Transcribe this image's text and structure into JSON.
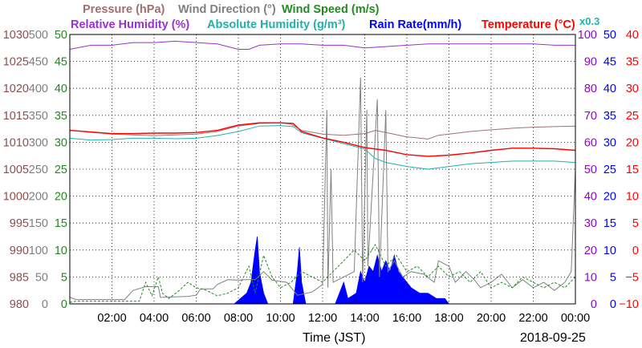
{
  "header": {
    "pressure": "Pressure (hPa)",
    "wind_direction": "Wind Direction (°)",
    "wind_speed": "Wind Speed (m/s)",
    "relative_humidity": "Relative Humidity (%)",
    "absolute_humidity": "Absolute Humidity (g/m³)",
    "rain_rate": "Rain Rate(mm/h)",
    "temperature": "Temperature (°C)",
    "scale_note": "x0.3"
  },
  "footer": {
    "xlabel": "Time (JST)",
    "date": "2018-09-25"
  },
  "chart_data": {
    "type": "line",
    "x_domain_hours": [
      0,
      24
    ],
    "x_ticks": [
      "02:00",
      "04:00",
      "06:00",
      "08:00",
      "10:00",
      "12:00",
      "14:00",
      "16:00",
      "18:00",
      "20:00",
      "22:00",
      "00:00"
    ],
    "grid": true,
    "axes": {
      "pressure": {
        "range": [
          980,
          1030
        ],
        "ticks": [
          "980",
          "985",
          "990",
          "995",
          "1000",
          "1005",
          "1010",
          "1015",
          "1020",
          "1025",
          "1030"
        ],
        "color": "#8b4f4f"
      },
      "wind_direction": {
        "range": [
          0,
          500
        ],
        "ticks": [
          "0",
          "50",
          "100",
          "150",
          "200",
          "250",
          "300",
          "350",
          "400",
          "450",
          "500"
        ],
        "color": "#7f7f7f"
      },
      "wind_speed": {
        "range": [
          0,
          50
        ],
        "ticks": [
          "0",
          "5",
          "10",
          "15",
          "20",
          "25",
          "30",
          "35",
          "40",
          "45",
          "50"
        ],
        "color": "#1e8a1e"
      },
      "relative_humidity": {
        "range": [
          0,
          100
        ],
        "ticks": [
          "0",
          "10",
          "20",
          "30",
          "40",
          "50",
          "60",
          "70",
          "80",
          "90",
          "100"
        ],
        "color": "#9400d3"
      },
      "rain_rate": {
        "range": [
          0,
          50
        ],
        "ticks": [
          "0",
          "5",
          "10",
          "15",
          "20",
          "25",
          "30",
          "35",
          "40",
          "45",
          "50"
        ],
        "color": "#0000ff"
      },
      "temperature": {
        "range": [
          -10,
          40
        ],
        "ticks": [
          "−10",
          "−5",
          "0",
          "5",
          "10",
          "15",
          "20",
          "25",
          "30",
          "35",
          "40"
        ],
        "color": "#ff0000"
      }
    },
    "series": [
      {
        "name": "Pressure (hPa)",
        "color": "#a07070",
        "axis": "pressure",
        "points": [
          [
            0,
            1012.2
          ],
          [
            2,
            1011.5
          ],
          [
            4,
            1011.2
          ],
          [
            6,
            1011.5
          ],
          [
            7,
            1012
          ],
          [
            8,
            1013
          ],
          [
            9,
            1013.5
          ],
          [
            10,
            1013.6
          ],
          [
            10.5,
            1013.4
          ],
          [
            11,
            1012.2
          ],
          [
            12,
            1011.5
          ],
          [
            13,
            1011.3
          ],
          [
            14,
            1011.6
          ],
          [
            14.5,
            1012.2
          ],
          [
            15,
            1011.8
          ],
          [
            16,
            1011
          ],
          [
            17,
            1010.6
          ],
          [
            17.5,
            1011.3
          ],
          [
            18,
            1011.5
          ],
          [
            19,
            1012
          ],
          [
            20,
            1012.3
          ],
          [
            21,
            1012.6
          ],
          [
            22,
            1012.8
          ],
          [
            23,
            1012.9
          ],
          [
            24,
            1013
          ]
        ]
      },
      {
        "name": "Relative Humidity (%)",
        "color": "#9932cc",
        "axis": "relative_humidity",
        "points": [
          [
            0,
            94.5
          ],
          [
            1,
            96
          ],
          [
            2,
            96
          ],
          [
            3,
            97
          ],
          [
            4,
            97
          ],
          [
            5,
            97.5
          ],
          [
            6,
            97
          ],
          [
            7,
            96.5
          ],
          [
            8,
            94.5
          ],
          [
            8.5,
            94.5
          ],
          [
            9,
            96
          ],
          [
            10,
            96.5
          ],
          [
            11,
            96.5
          ],
          [
            12,
            96
          ],
          [
            13,
            96
          ],
          [
            14,
            95
          ],
          [
            15,
            95.5
          ],
          [
            16,
            96
          ],
          [
            17,
            96.5
          ],
          [
            18,
            96.5
          ],
          [
            20,
            96.5
          ],
          [
            22,
            96.5
          ],
          [
            23,
            96
          ],
          [
            24,
            96
          ]
        ]
      },
      {
        "name": "Absolute Humidity (g/m³)",
        "color": "#20b2aa",
        "axis": "scaled_x0.3",
        "points": [
          [
            0,
            61.5
          ],
          [
            1,
            60.8
          ],
          [
            2,
            61
          ],
          [
            3,
            61.5
          ],
          [
            4,
            61.5
          ],
          [
            5,
            61.3
          ],
          [
            6,
            61.5
          ],
          [
            7,
            62.5
          ],
          [
            8,
            64
          ],
          [
            9,
            66
          ],
          [
            10,
            66.2
          ],
          [
            10.6,
            65.8
          ],
          [
            11,
            63.5
          ],
          [
            12,
            61.5
          ],
          [
            13,
            59.5
          ],
          [
            14,
            57.5
          ],
          [
            14.5,
            54
          ],
          [
            15,
            52.5
          ],
          [
            16,
            51
          ],
          [
            17,
            50
          ],
          [
            18,
            51
          ],
          [
            19,
            52
          ],
          [
            20,
            52.5
          ],
          [
            21,
            53
          ],
          [
            22,
            53
          ],
          [
            23,
            53
          ],
          [
            24,
            52.5
          ]
        ]
      },
      {
        "name": "Temperature (°C)",
        "color": "#ff0000",
        "axis": "temperature",
        "points": [
          [
            0,
            22.2
          ],
          [
            1,
            21.9
          ],
          [
            2,
            21.6
          ],
          [
            3,
            21.6
          ],
          [
            4,
            21.7
          ],
          [
            5,
            21.7
          ],
          [
            6,
            21.8
          ],
          [
            7,
            22.2
          ],
          [
            8,
            23.2
          ],
          [
            9,
            23.6
          ],
          [
            10,
            23.6
          ],
          [
            10.6,
            23.5
          ],
          [
            11,
            22
          ],
          [
            12,
            20.8
          ],
          [
            13,
            20
          ],
          [
            14,
            19
          ],
          [
            15,
            18.5
          ],
          [
            16,
            17.7
          ],
          [
            17,
            17.4
          ],
          [
            18,
            17.6
          ],
          [
            19,
            18
          ],
          [
            20,
            18.5
          ],
          [
            21,
            18.9
          ],
          [
            22,
            18.9
          ],
          [
            23,
            18.8
          ],
          [
            24,
            18.5
          ]
        ]
      },
      {
        "name": "Wind Direction (°)",
        "color": "#808080",
        "axis": "wind_direction",
        "points": [
          [
            0,
            12
          ],
          [
            0.3,
            8
          ],
          [
            2.6,
            8
          ],
          [
            3,
            25
          ],
          [
            3.6,
            32
          ],
          [
            4.2,
            32
          ],
          [
            4.3,
            12
          ],
          [
            5.6,
            14
          ],
          [
            6,
            16
          ],
          [
            6.2,
            28
          ],
          [
            6.8,
            28
          ],
          [
            7,
            36
          ],
          [
            7.5,
            45
          ],
          [
            8,
            44
          ],
          [
            8.3,
            45
          ],
          [
            8.8,
            45
          ],
          [
            9.2,
            60
          ],
          [
            9.6,
            44
          ],
          [
            10.3,
            40
          ],
          [
            10.8,
            16
          ],
          [
            11.5,
            22
          ],
          [
            12,
            36
          ],
          [
            12.2,
            360
          ],
          [
            12.25,
            30
          ],
          [
            12.4,
            250
          ],
          [
            12.5,
            40
          ],
          [
            13,
            50
          ],
          [
            13.5,
            60
          ],
          [
            13.8,
            420
          ],
          [
            13.9,
            40
          ],
          [
            14.1,
            360
          ],
          [
            14.15,
            70
          ],
          [
            14.6,
            380
          ],
          [
            14.7,
            50
          ],
          [
            15,
            360
          ],
          [
            15.1,
            60
          ],
          [
            15.4,
            80
          ],
          [
            15.8,
            50
          ],
          [
            16.2,
            60
          ],
          [
            16.8,
            55
          ],
          [
            17.3,
            40
          ],
          [
            17.5,
            80
          ],
          [
            18,
            70
          ],
          [
            18.3,
            40
          ],
          [
            18.8,
            60
          ],
          [
            19.2,
            45
          ],
          [
            19.5,
            30
          ],
          [
            20,
            40
          ],
          [
            20.5,
            55
          ],
          [
            21,
            30
          ],
          [
            21.5,
            45
          ],
          [
            22,
            30
          ],
          [
            22.5,
            40
          ],
          [
            23,
            25
          ],
          [
            23.5,
            40
          ],
          [
            23.8,
            60
          ],
          [
            24,
            250
          ]
        ]
      },
      {
        "name": "Wind Speed (m/s)",
        "color": "#228b22",
        "axis": "wind_speed",
        "points": [
          [
            0,
            0.3
          ],
          [
            0.3,
            0.5
          ],
          [
            3.3,
            0.5
          ],
          [
            3.6,
            4
          ],
          [
            3.9,
            1.5
          ],
          [
            4.2,
            5
          ],
          [
            4.4,
            2
          ],
          [
            4.7,
            1
          ],
          [
            5.2,
            2.5
          ],
          [
            5.6,
            4
          ],
          [
            6,
            3
          ],
          [
            6.5,
            2.5
          ],
          [
            7,
            1.5
          ],
          [
            7.5,
            2
          ],
          [
            8,
            3
          ],
          [
            8.5,
            7
          ],
          [
            8.8,
            2
          ],
          [
            9.2,
            9
          ],
          [
            9.6,
            5
          ],
          [
            10,
            3
          ],
          [
            10.5,
            4
          ],
          [
            11,
            6
          ],
          [
            11.5,
            5
          ],
          [
            12,
            4
          ],
          [
            12.5,
            6
          ],
          [
            13,
            8
          ],
          [
            13.5,
            10
          ],
          [
            14,
            8
          ],
          [
            14.5,
            11
          ],
          [
            15,
            7
          ],
          [
            15.5,
            9
          ],
          [
            16,
            6
          ],
          [
            16.5,
            7
          ],
          [
            17,
            5
          ],
          [
            17.5,
            7
          ],
          [
            18,
            5
          ],
          [
            18.5,
            6
          ],
          [
            19,
            4
          ],
          [
            19.5,
            6
          ],
          [
            20,
            3
          ],
          [
            20.5,
            4
          ],
          [
            21,
            3
          ],
          [
            21.5,
            5
          ],
          [
            22,
            4
          ],
          [
            22.5,
            3
          ],
          [
            23,
            4
          ],
          [
            23.5,
            3
          ],
          [
            24,
            5
          ]
        ]
      },
      {
        "name": "Rain Rate(mm/h)",
        "color": "#0000ff",
        "axis": "rain_rate",
        "style": "filled",
        "points": [
          [
            7.8,
            0
          ],
          [
            8.4,
            2
          ],
          [
            8.6,
            4
          ],
          [
            8.8,
            10
          ],
          [
            8.9,
            12.5
          ],
          [
            9,
            6
          ],
          [
            9.2,
            2
          ],
          [
            9.4,
            0
          ],
          [
            10.6,
            0
          ],
          [
            10.8,
            6
          ],
          [
            10.9,
            10.5
          ],
          [
            11,
            4
          ],
          [
            11.2,
            0
          ],
          [
            12.6,
            0
          ],
          [
            12.8,
            2
          ],
          [
            13,
            4
          ],
          [
            13.2,
            1
          ],
          [
            13.6,
            2
          ],
          [
            13.8,
            6
          ],
          [
            14,
            4
          ],
          [
            14.2,
            7
          ],
          [
            14.4,
            6
          ],
          [
            14.6,
            9
          ],
          [
            14.8,
            6
          ],
          [
            15,
            8
          ],
          [
            15.2,
            6
          ],
          [
            15.4,
            9
          ],
          [
            15.6,
            6
          ],
          [
            15.8,
            5
          ],
          [
            16,
            4
          ],
          [
            16.2,
            3
          ],
          [
            16.6,
            2
          ],
          [
            17,
            2
          ],
          [
            17.4,
            1
          ],
          [
            17.8,
            1
          ],
          [
            18,
            0
          ]
        ]
      }
    ]
  }
}
